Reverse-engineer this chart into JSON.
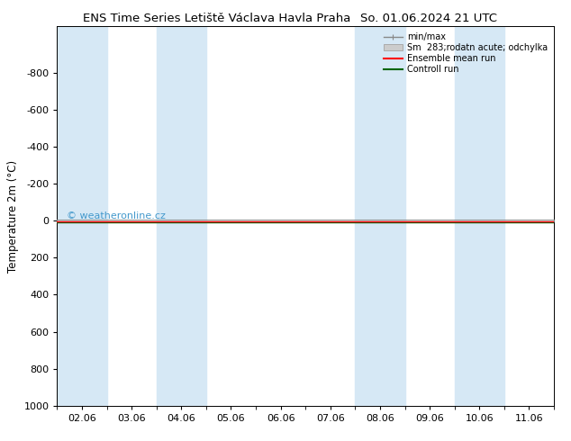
{
  "title_left": "ENS Time Series Letiště Václava Havla Praha",
  "title_right": "So. 01.06.2024 21 UTC",
  "ylabel": "Temperature 2m (°C)",
  "ylim_bottom": 1000,
  "ylim_top": -1050,
  "yticks": [
    -800,
    -600,
    -400,
    -200,
    0,
    200,
    400,
    600,
    800,
    1000
  ],
  "xlim_left": 0,
  "xlim_right": 10,
  "xtick_labels": [
    "02.06",
    "03.06",
    "04.06",
    "05.06",
    "06.06",
    "07.06",
    "08.06",
    "09.06",
    "10.06",
    "11.06"
  ],
  "band_pairs": [
    [
      0,
      1
    ],
    [
      2,
      3
    ],
    [
      6,
      7
    ],
    [
      8,
      9
    ]
  ],
  "band_color": "#d6e8f5",
  "red_line_color": "#ff0000",
  "green_line_color": "#006400",
  "gray_line_color": "#888888",
  "watermark": "© weatheronline.cz",
  "watermark_color": "#4499cc",
  "legend_labels": [
    "min/max",
    "Sm  283;rodatn acute; odchylka",
    "Ensemble mean run",
    "Controll run"
  ],
  "background_color": "#ffffff",
  "axes_bg": "#ffffff",
  "title_fontsize": 9.5,
  "tick_fontsize": 8,
  "ylabel_fontsize": 8.5
}
